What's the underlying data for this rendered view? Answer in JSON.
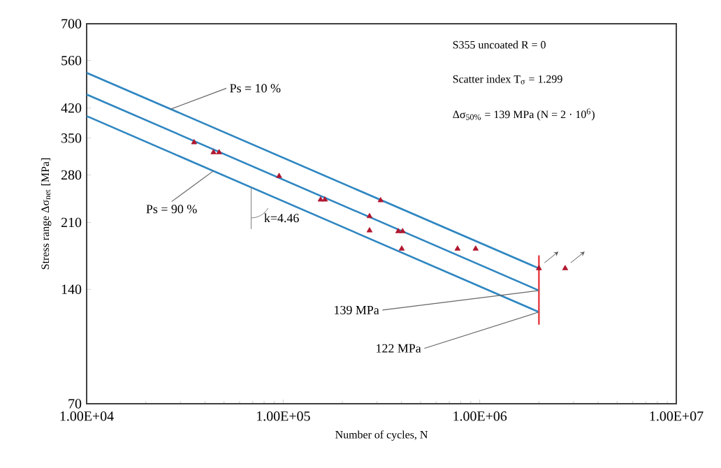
{
  "chart_data": {
    "type": "scatter",
    "xlabel": "Number of cycles, N",
    "ylabel": "Stress range Δσ$_{net}$ [MPa]",
    "log": "xy",
    "xlim": [
      10000,
      10000000
    ],
    "ylim": [
      70,
      700
    ],
    "xticks": [
      {
        "value": 10000,
        "label": "1.00E+04"
      },
      {
        "value": 100000,
        "label": "1.00E+05"
      },
      {
        "value": 1000000,
        "label": "1.00E+06"
      },
      {
        "value": 10000000,
        "label": "1.00E+07"
      }
    ],
    "yticks": [
      70,
      140,
      210,
      280,
      350,
      420,
      560,
      700
    ],
    "grid": false,
    "series": [
      {
        "type": "line",
        "color": "#2e86c1",
        "marker": "none",
        "x": [
          10000,
          2000000
        ],
        "values": [
          520,
          159
        ]
      },
      {
        "type": "line",
        "color": "#2e86c1",
        "marker": "none",
        "x": [
          10000,
          2000000
        ],
        "values": [
          456,
          139
        ]
      },
      {
        "type": "line",
        "color": "#2e86c1",
        "marker": "none",
        "x": [
          10000,
          2000000
        ],
        "values": [
          400,
          122
        ]
      },
      {
        "type": "line",
        "color": "#e8464b",
        "marker": "none",
        "x": [
          2000000,
          2000000
        ],
        "values": [
          172,
          113
        ]
      },
      {
        "color": "#b0172f",
        "marker": "triangle",
        "x": [
          35200,
          44200,
          47200,
          95300,
          155000,
          163000,
          275000,
          275000,
          313000,
          385000,
          405000,
          401000,
          771000,
          953000
        ],
        "values": [
          341,
          321,
          321,
          278,
          241,
          241,
          218,
          200,
          240,
          199,
          199,
          179,
          179,
          179
        ]
      },
      {
        "color": "#b0172f",
        "marker": "triangle",
        "x": [
          2000000,
          2720000
        ],
        "values": [
          159,
          159
        ]
      }
    ],
    "annotations": [
      "S355 uncoated R = 0",
      "Scatter index T$_{σ}$ = 1.299",
      "Δσ$_{50%}$ = 139 MPa (N = 2 · 10$^{6}$)",
      {
        "text": "Ps = 10 %",
        "x": 26700,
        "y": 417
      },
      {
        "text": "Ps = 90 %",
        "x": 44200,
        "y": 287
      },
      {
        "text": "k=4.46",
        "x": 68700,
        "y": 260
      },
      {
        "text": "139 MPa",
        "x": 2000000,
        "y": 139
      },
      {
        "text": "122 MPa",
        "x": 2000000,
        "y": 122
      }
    ]
  }
}
